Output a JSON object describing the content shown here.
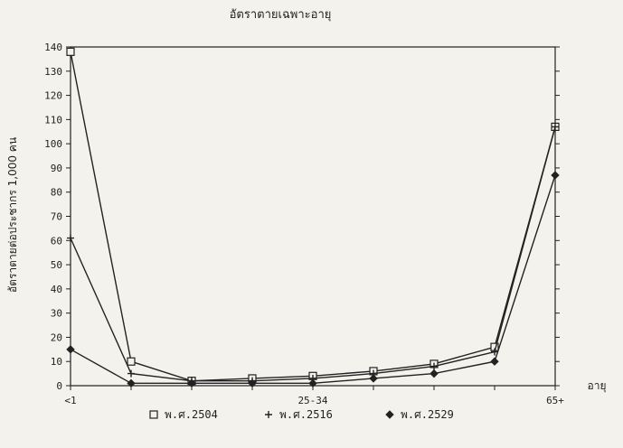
{
  "chart_data": {
    "type": "line",
    "title": "อัตราตายเฉพาะอายุ",
    "ylabel": "อัตราตายต่อประชากร 1,000 คน",
    "xlabel": "อายุ",
    "ylim": [
      0,
      140
    ],
    "yticks": [
      "0",
      "10",
      "20",
      "30",
      "40",
      "50",
      "60",
      "70",
      "80",
      "90",
      "100",
      "110",
      "120",
      "130",
      "140"
    ],
    "x_tick_labels": [
      {
        "index": 0,
        "label": "<1"
      },
      {
        "index": 4,
        "label": "25-34"
      },
      {
        "index": 8,
        "label": "65+"
      }
    ],
    "x_count": 9,
    "grid": false,
    "legend_position": "bottom",
    "series": [
      {
        "name": "พ.ศ.2504",
        "marker": "square",
        "values": [
          138,
          10,
          2,
          3,
          4,
          6,
          9,
          16,
          107
        ]
      },
      {
        "name": "พ.ศ.2516",
        "marker": "plus",
        "values": [
          61,
          5,
          2,
          2,
          3,
          5,
          8,
          14,
          107
        ]
      },
      {
        "name": "พ.ศ.2529",
        "marker": "diamond",
        "values": [
          15,
          1,
          1,
          1,
          1,
          3,
          5,
          10,
          87
        ]
      }
    ]
  }
}
